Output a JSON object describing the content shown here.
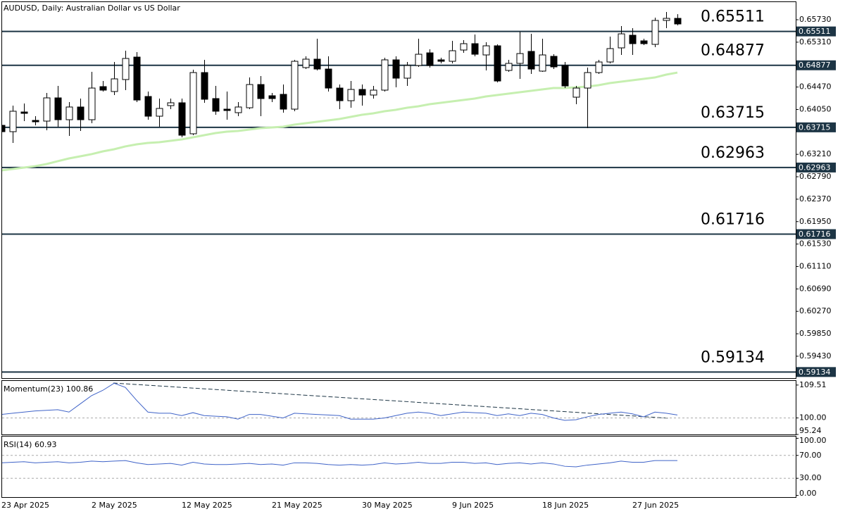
{
  "chart_data": [
    {
      "type": "candlestick",
      "title": "AUDUSD, Daily:  Australian Dollar vs US Dollar",
      "categories": [
        "23 Apr 2025",
        null,
        null,
        null,
        null,
        null,
        null,
        null,
        "2 May 2025",
        null,
        null,
        null,
        null,
        null,
        null,
        null,
        "12 May 2025",
        null,
        null,
        null,
        null,
        null,
        null,
        null,
        "21 May 2025",
        null,
        null,
        null,
        null,
        null,
        null,
        null,
        "30 May 2025",
        null,
        null,
        null,
        null,
        null,
        null,
        null,
        "9 Jun 2025",
        null,
        null,
        null,
        null,
        null,
        null,
        null,
        "18 Jun 2025",
        null,
        null,
        null,
        null,
        null,
        null,
        null,
        "27 Jun 2025",
        null,
        null,
        null,
        null
      ],
      "open": [
        0.63753,
        0.63634,
        0.64003,
        0.63845,
        0.63832,
        0.64267,
        0.63858,
        0.64096,
        0.63858,
        0.64478,
        0.64386,
        0.6461,
        0.65031,
        0.64293,
        0.63924,
        0.64122,
        0.64175,
        0.63595,
        0.64741,
        0.64254,
        0.64056,
        0.6399,
        0.64082,
        0.64517,
        0.64307,
        0.64333,
        0.64056,
        0.64834,
        0.64992,
        0.64807,
        0.64451,
        0.64214,
        0.64425,
        0.6432,
        0.64412,
        0.64979,
        0.64636,
        0.64873,
        0.6511,
        0.64979,
        0.64952,
        0.65163,
        0.65282,
        0.65071,
        0.65242,
        0.64781,
        0.64913,
        0.65137,
        0.64768,
        0.65045,
        0.64873,
        0.6428,
        0.64451,
        0.64741,
        0.64939,
        0.65203,
        0.6544,
        0.65335,
        0.65269,
        0.65717,
        0.65756
      ],
      "high": [
        0.63858,
        0.64122,
        0.64162,
        0.63924,
        0.64359,
        0.64491,
        0.64188,
        0.64254,
        0.64755,
        0.64583,
        0.64939,
        0.6515,
        0.65124,
        0.64386,
        0.64254,
        0.64254,
        0.64254,
        0.64794,
        0.64979,
        0.64491,
        0.64386,
        0.64188,
        0.64649,
        0.64676,
        0.64359,
        0.64517,
        0.64979,
        0.65045,
        0.65374,
        0.65045,
        0.64517,
        0.64583,
        0.64517,
        0.64491,
        0.65018,
        0.65045,
        0.64939,
        0.65374,
        0.65176,
        0.65018,
        0.65335,
        0.65348,
        0.65453,
        0.65308,
        0.65269,
        0.64979,
        0.65506,
        0.65466,
        0.65374,
        0.65084,
        0.64939,
        0.64491,
        0.64834,
        0.64979,
        0.65414,
        0.65611,
        0.65572,
        0.65374,
        0.65769,
        0.65875,
        0.65835
      ],
      "low": [
        0.63568,
        0.63423,
        0.63832,
        0.63753,
        0.63661,
        0.63727,
        0.63555,
        0.63648,
        0.63792,
        0.64386,
        0.6432,
        0.64412,
        0.64188,
        0.63858,
        0.63727,
        0.64056,
        0.63529,
        0.63568,
        0.64175,
        0.63951,
        0.63858,
        0.63924,
        0.64056,
        0.63924,
        0.64188,
        0.6399,
        0.64017,
        0.64807,
        0.64781,
        0.64386,
        0.64056,
        0.64082,
        0.64122,
        0.64254,
        0.64386,
        0.64465,
        0.64491,
        0.64847,
        0.64834,
        0.64913,
        0.64913,
        0.6511,
        0.65045,
        0.64781,
        0.64557,
        0.64755,
        0.64623,
        0.64715,
        0.64755,
        0.64807,
        0.64451,
        0.64148,
        0.637,
        0.64715,
        0.64913,
        0.65071,
        0.65071,
        0.65255,
        0.65216,
        0.65572,
        0.65625
      ],
      "close": [
        0.63634,
        0.64017,
        0.63977,
        0.63819,
        0.64267,
        0.63858,
        0.64096,
        0.63858,
        0.64451,
        0.64412,
        0.64623,
        0.65005,
        0.64227,
        0.63924,
        0.64069,
        0.64175,
        0.63568,
        0.64741,
        0.64241,
        0.64017,
        0.6403,
        0.64096,
        0.64517,
        0.64254,
        0.64254,
        0.64056,
        0.64952,
        0.64992,
        0.64807,
        0.64451,
        0.64214,
        0.64425,
        0.6432,
        0.64412,
        0.64979,
        0.64636,
        0.64873,
        0.65084,
        0.64873,
        0.64952,
        0.6515,
        0.65282,
        0.65084,
        0.65242,
        0.64583,
        0.64913,
        0.65097,
        0.64807,
        0.65071,
        0.64847,
        0.64491,
        0.64451,
        0.64741,
        0.64939,
        0.6519,
        0.65466,
        0.65282,
        0.65282,
        0.65717,
        0.65756,
        0.65651
      ],
      "up_color": "#ffffff",
      "down_color": "#000000",
      "ma": {
        "color": "#c6efb0",
        "values": [
          0.62909,
          0.62936,
          0.62962,
          0.62989,
          0.63028,
          0.63081,
          0.63133,
          0.63173,
          0.63213,
          0.63265,
          0.63305,
          0.63358,
          0.63397,
          0.63423,
          0.63437,
          0.63463,
          0.63489,
          0.63529,
          0.63568,
          0.63608,
          0.63634,
          0.63648,
          0.63674,
          0.637,
          0.63713,
          0.63727,
          0.63766,
          0.63792,
          0.63819,
          0.63845,
          0.63872,
          0.63911,
          0.63951,
          0.63977,
          0.64017,
          0.64043,
          0.64082,
          0.64109,
          0.64148,
          0.64175,
          0.64201,
          0.64227,
          0.64254,
          0.64293,
          0.6432,
          0.64346,
          0.64372,
          0.64399,
          0.64425,
          0.64451,
          0.64451,
          0.64465,
          0.64478,
          0.64504,
          0.64544,
          0.6457,
          0.64596,
          0.64623,
          0.64649,
          0.64702,
          0.64741
        ]
      },
      "levels": [
        0.65511,
        0.64877,
        0.63715,
        0.62963,
        0.61716,
        0.59134
      ],
      "level_color": "#1d3545",
      "ylim": [
        0.5902,
        0.6606
      ],
      "yticks": [
        {
          "value": 0.6573,
          "label": "0.65730"
        },
        {
          "value": 0.6531,
          "label": "0.65310"
        },
        {
          "value": 0.6447,
          "label": "0.64470"
        },
        {
          "value": 0.6405,
          "label": "0.64050"
        },
        {
          "value": 0.6321,
          "label": "0.63210"
        },
        {
          "value": 0.6279,
          "label": "0.62790"
        },
        {
          "value": 0.6237,
          "label": "0.62370"
        },
        {
          "value": 0.6195,
          "label": "0.61950"
        },
        {
          "value": 0.6153,
          "label": "0.61530"
        },
        {
          "value": 0.6111,
          "label": "0.61110"
        },
        {
          "value": 0.6069,
          "label": "0.60690"
        },
        {
          "value": 0.6027,
          "label": "0.60270"
        },
        {
          "value": 0.5985,
          "label": "0.59850"
        },
        {
          "value": 0.5943,
          "label": "0.59430"
        }
      ]
    },
    {
      "type": "line",
      "title": "Momentum(23) 100.86",
      "color": "#3f63c8",
      "values": [
        101.02,
        101.36,
        101.7,
        102.04,
        102.21,
        102.38,
        101.7,
        104.08,
        106.45,
        107.98,
        110.02,
        108.83,
        105.09,
        101.7,
        101.36,
        101.36,
        100.68,
        101.53,
        100.68,
        100.51,
        100.34,
        99.66,
        101.02,
        101.02,
        100.51,
        100.0,
        101.36,
        101.19,
        101.02,
        100.85,
        100.68,
        99.66,
        99.66,
        99.66,
        100.0,
        100.68,
        101.36,
        101.7,
        101.36,
        100.68,
        101.19,
        101.7,
        101.53,
        101.36,
        100.68,
        101.19,
        100.68,
        101.36,
        101.02,
        100.0,
        99.32,
        99.49,
        100.34,
        101.02,
        101.36,
        101.7,
        101.19,
        100.34,
        101.7,
        101.36,
        100.86
      ],
      "levels": [
        100
      ],
      "ylim": [
        95.24,
        110.7
      ],
      "yticks": [
        109.51,
        {
          "value": 100,
          "label": "100.00"
        },
        95.24
      ]
    },
    {
      "type": "line",
      "title": "RSI(14) 60.93",
      "color": "#3f63c8",
      "values": [
        57,
        58,
        59,
        57,
        58,
        59,
        57,
        58,
        60,
        59,
        60,
        61,
        57,
        54,
        55,
        56,
        53,
        58,
        55,
        54,
        54,
        55,
        56,
        54,
        55,
        53,
        57,
        57,
        56,
        54,
        53,
        54,
        53,
        54,
        57,
        55,
        56,
        58,
        56,
        56,
        58,
        58,
        56,
        57,
        54,
        56,
        57,
        55,
        57,
        55,
        51,
        50,
        53,
        55,
        57,
        60,
        58,
        58,
        61,
        61,
        60.93
      ],
      "levels": [
        70,
        30
      ],
      "ylim": [
        -3,
        103
      ],
      "yticks": [
        {
          "value": 100,
          "label": "100.00"
        },
        {
          "value": 70,
          "label": "70.00"
        },
        {
          "value": 30,
          "label": "30.00"
        },
        {
          "value": 0,
          "label": "0.00"
        }
      ]
    }
  ]
}
